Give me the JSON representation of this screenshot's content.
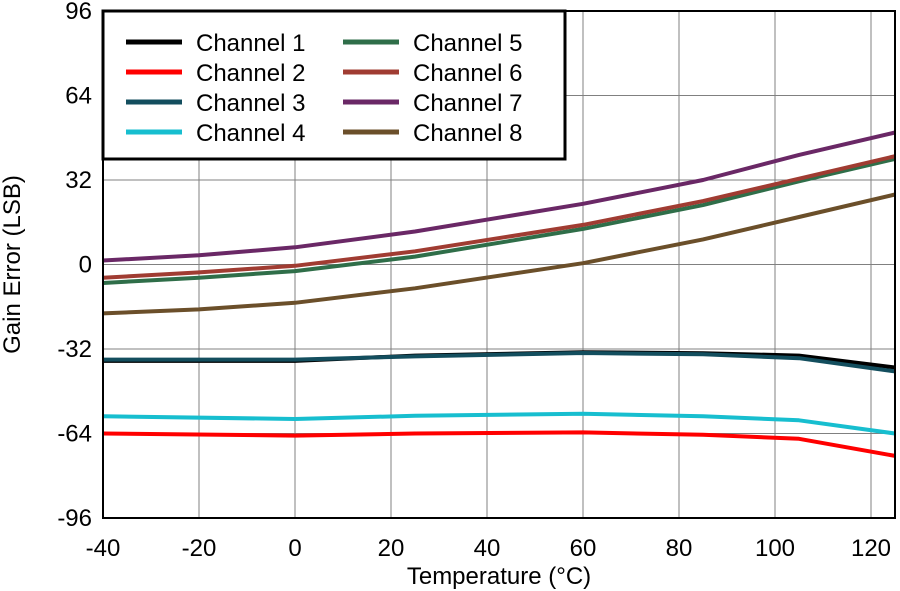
{
  "chart_data": {
    "type": "line",
    "xlabel": "Temperature (°C)",
    "ylabel": "Gain Error (LSB)",
    "xlim": [
      -40,
      125
    ],
    "ylim": [
      -96,
      96
    ],
    "x_ticks": [
      -40,
      -20,
      0,
      20,
      40,
      60,
      80,
      100,
      120
    ],
    "y_ticks": [
      96,
      64,
      32,
      0,
      -32,
      -64,
      -96
    ],
    "grid": true,
    "legend_position": "top-left",
    "series": [
      {
        "name": "Channel 1",
        "color": "#000000",
        "points": [
          [
            -40,
            -36.5
          ],
          [
            0,
            -36.5
          ],
          [
            25,
            -34.5
          ],
          [
            60,
            -33.2
          ],
          [
            85,
            -33.6
          ],
          [
            105,
            -34.5
          ],
          [
            125,
            -39
          ]
        ]
      },
      {
        "name": "Channel 2",
        "color": "#ff0000",
        "points": [
          [
            -40,
            -64
          ],
          [
            0,
            -64.8
          ],
          [
            25,
            -64
          ],
          [
            60,
            -63.6
          ],
          [
            85,
            -64.5
          ],
          [
            105,
            -66
          ],
          [
            125,
            -72.5
          ]
        ]
      },
      {
        "name": "Channel 3",
        "color": "#134e5e",
        "points": [
          [
            -40,
            -36
          ],
          [
            0,
            -36
          ],
          [
            25,
            -34.8
          ],
          [
            60,
            -33.5
          ],
          [
            85,
            -34
          ],
          [
            105,
            -35.5
          ],
          [
            125,
            -40.5
          ]
        ]
      },
      {
        "name": "Channel 4",
        "color": "#17becf",
        "points": [
          [
            -40,
            -57.5
          ],
          [
            0,
            -58.5
          ],
          [
            25,
            -57.3
          ],
          [
            60,
            -56.5
          ],
          [
            85,
            -57.5
          ],
          [
            105,
            -59
          ],
          [
            125,
            -64
          ]
        ]
      },
      {
        "name": "Channel 5",
        "color": "#2f6e49",
        "points": [
          [
            -40,
            -7
          ],
          [
            -20,
            -5
          ],
          [
            0,
            -2.5
          ],
          [
            25,
            3
          ],
          [
            60,
            13.5
          ],
          [
            85,
            22.5
          ],
          [
            105,
            31.5
          ],
          [
            125,
            40
          ]
        ]
      },
      {
        "name": "Channel 6",
        "color": "#a03c32",
        "points": [
          [
            -40,
            -5
          ],
          [
            -20,
            -3
          ],
          [
            0,
            -0.5
          ],
          [
            25,
            5
          ],
          [
            60,
            15
          ],
          [
            85,
            24
          ],
          [
            105,
            32.5
          ],
          [
            125,
            41
          ]
        ]
      },
      {
        "name": "Channel 7",
        "color": "#6a2866",
        "points": [
          [
            -40,
            1.5
          ],
          [
            -20,
            3.5
          ],
          [
            0,
            6.5
          ],
          [
            25,
            12.5
          ],
          [
            60,
            23
          ],
          [
            85,
            32
          ],
          [
            105,
            41.5
          ],
          [
            125,
            50
          ]
        ]
      },
      {
        "name": "Channel 8",
        "color": "#6b4f2a",
        "points": [
          [
            -40,
            -18.5
          ],
          [
            -20,
            -17
          ],
          [
            0,
            -14.5
          ],
          [
            25,
            -9
          ],
          [
            60,
            0.5
          ],
          [
            85,
            9.5
          ],
          [
            105,
            18
          ],
          [
            125,
            26.5
          ]
        ]
      }
    ]
  }
}
